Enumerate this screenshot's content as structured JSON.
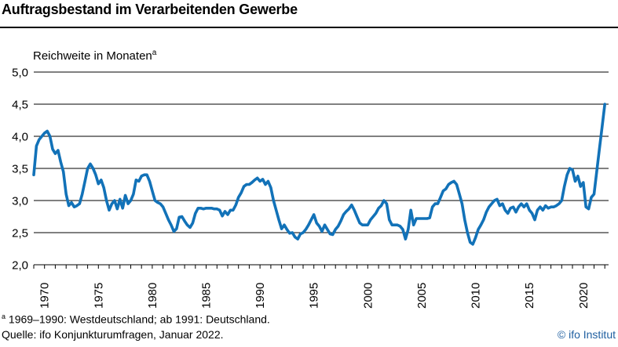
{
  "header": {
    "title": "Auftragsbestand im Verarbeitenden Gewerbe"
  },
  "chart": {
    "subtitle": "Reichweite in Monaten",
    "subtitle_sup": "a"
  },
  "footnotes": {
    "note_sup": "a",
    "note_text": " 1969–1990: Westdeutschland; ab 1991: Deutschland.",
    "source": "Quelle: ifo Konjunkturumfragen, Januar 2022.",
    "copyright": "© ifo Institut"
  },
  "colors": {
    "line": "#1272b8",
    "grid": "#000000",
    "copyright_text": "#1f5fa0"
  },
  "chart_data": {
    "type": "line",
    "title": "Auftragsbestand im Verarbeitenden Gewerbe",
    "ylabel": "Reichweite in Monaten",
    "xlabel": "",
    "legend": false,
    "grid": true,
    "frequency": "quarterly",
    "x_start": 1969.0,
    "x_step": 0.25,
    "xlim": [
      1969.0,
      2022.35
    ],
    "ylim": [
      2.0,
      5.0
    ],
    "y_tick_values": [
      2.0,
      2.5,
      3.0,
      3.5,
      4.0,
      4.5,
      5.0
    ],
    "y_tick_labels": [
      "2,0",
      "2,5",
      "3,0",
      "3,5",
      "4,0",
      "4,5",
      "5,0"
    ],
    "x_tick_labels": [
      1970,
      1975,
      1980,
      1985,
      1990,
      1995,
      2000,
      2005,
      2010,
      2015,
      2020
    ],
    "values": [
      3.4,
      3.85,
      3.95,
      4.0,
      4.05,
      4.08,
      4.0,
      3.8,
      3.73,
      3.78,
      3.6,
      3.45,
      3.1,
      2.92,
      2.97,
      2.9,
      2.92,
      2.95,
      3.1,
      3.3,
      3.5,
      3.57,
      3.5,
      3.4,
      3.26,
      3.32,
      3.2,
      3.0,
      2.85,
      2.95,
      3.0,
      2.87,
      3.02,
      2.88,
      3.08,
      2.95,
      3.0,
      3.1,
      3.32,
      3.3,
      3.38,
      3.4,
      3.4,
      3.3,
      3.15,
      3.0,
      2.97,
      2.95,
      2.9,
      2.8,
      2.7,
      2.62,
      2.52,
      2.56,
      2.74,
      2.75,
      2.68,
      2.62,
      2.58,
      2.65,
      2.8,
      2.88,
      2.88,
      2.87,
      2.88,
      2.88,
      2.88,
      2.87,
      2.87,
      2.85,
      2.76,
      2.83,
      2.78,
      2.85,
      2.85,
      2.93,
      3.05,
      3.12,
      3.22,
      3.25,
      3.25,
      3.28,
      3.32,
      3.35,
      3.3,
      3.33,
      3.25,
      3.3,
      3.2,
      3.0,
      2.85,
      2.7,
      2.56,
      2.62,
      2.55,
      2.49,
      2.5,
      2.43,
      2.4,
      2.48,
      2.5,
      2.55,
      2.62,
      2.7,
      2.78,
      2.65,
      2.6,
      2.52,
      2.62,
      2.55,
      2.48,
      2.47,
      2.55,
      2.6,
      2.68,
      2.78,
      2.83,
      2.87,
      2.93,
      2.85,
      2.75,
      2.65,
      2.62,
      2.62,
      2.62,
      2.7,
      2.75,
      2.8,
      2.88,
      2.92,
      3.0,
      2.95,
      2.7,
      2.62,
      2.62,
      2.62,
      2.6,
      2.55,
      2.4,
      2.55,
      2.85,
      2.62,
      2.72,
      2.72,
      2.72,
      2.72,
      2.72,
      2.73,
      2.9,
      2.95,
      2.95,
      3.05,
      3.15,
      3.18,
      3.25,
      3.28,
      3.3,
      3.25,
      3.1,
      2.95,
      2.7,
      2.5,
      2.35,
      2.32,
      2.42,
      2.55,
      2.62,
      2.7,
      2.82,
      2.9,
      2.95,
      3.0,
      3.02,
      2.92,
      2.95,
      2.85,
      2.8,
      2.88,
      2.9,
      2.82,
      2.9,
      2.95,
      2.9,
      2.95,
      2.85,
      2.8,
      2.7,
      2.85,
      2.9,
      2.85,
      2.92,
      2.88,
      2.9,
      2.9,
      2.92,
      2.95,
      3.0,
      3.22,
      3.4,
      3.5,
      3.48,
      3.3,
      3.38,
      3.22,
      3.28,
      2.9,
      2.87,
      3.05,
      3.1,
      3.45,
      3.8,
      4.15,
      4.5
    ]
  }
}
